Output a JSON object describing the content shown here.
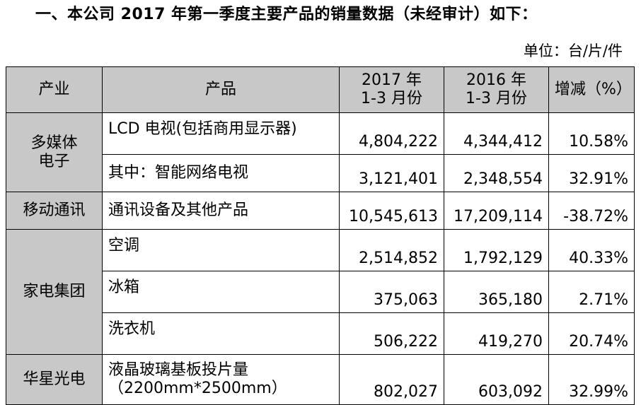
{
  "title": "一、本公司 2017 年第一季度主要产品的销量数据（未经审计）如下：",
  "unit": "单位：台/片/件",
  "headers": {
    "industry": "产业",
    "product": "产品",
    "y2017_line1": "2017 年",
    "y2017_line2": "1-3 月份",
    "y2016_line1": "2016 年",
    "y2016_line2": "1-3 月份",
    "change": "增减（%）"
  },
  "groups": [
    {
      "industry_line1": "多媒体",
      "industry_line2": "电子",
      "rows": [
        {
          "product": "LCD 电视(包括商用显示器)",
          "v2017": "4,804,222",
          "v2016": "4,344,412",
          "change": "10.58%"
        },
        {
          "product": "其中：智能网络电视",
          "v2017": "3,121,401",
          "v2016": "2,348,554",
          "change": "32.91%"
        }
      ]
    },
    {
      "industry_line1": "移动通讯",
      "rows": [
        {
          "product": "通讯设备及其他产品",
          "v2017": "10,545,613",
          "v2016": "17,209,114",
          "change": "-38.72%"
        }
      ]
    },
    {
      "industry_line1": "家电集团",
      "rows": [
        {
          "product": "空调",
          "v2017": "2,514,852",
          "v2016": "1,792,129",
          "change": "40.33%"
        },
        {
          "product": "冰箱",
          "v2017": "375,063",
          "v2016": "365,180",
          "change": "2.71%"
        },
        {
          "product": "洗衣机",
          "v2017": "506,222",
          "v2016": "419,270",
          "change": "20.74%"
        }
      ]
    },
    {
      "industry_line1": "华星光电",
      "rows": [
        {
          "product": "液晶玻璃基板投片量",
          "product_line2": "（2200mm*2500mm）",
          "v2017": "802,027",
          "v2016": "603,092",
          "change": "32.99%"
        }
      ]
    }
  ]
}
